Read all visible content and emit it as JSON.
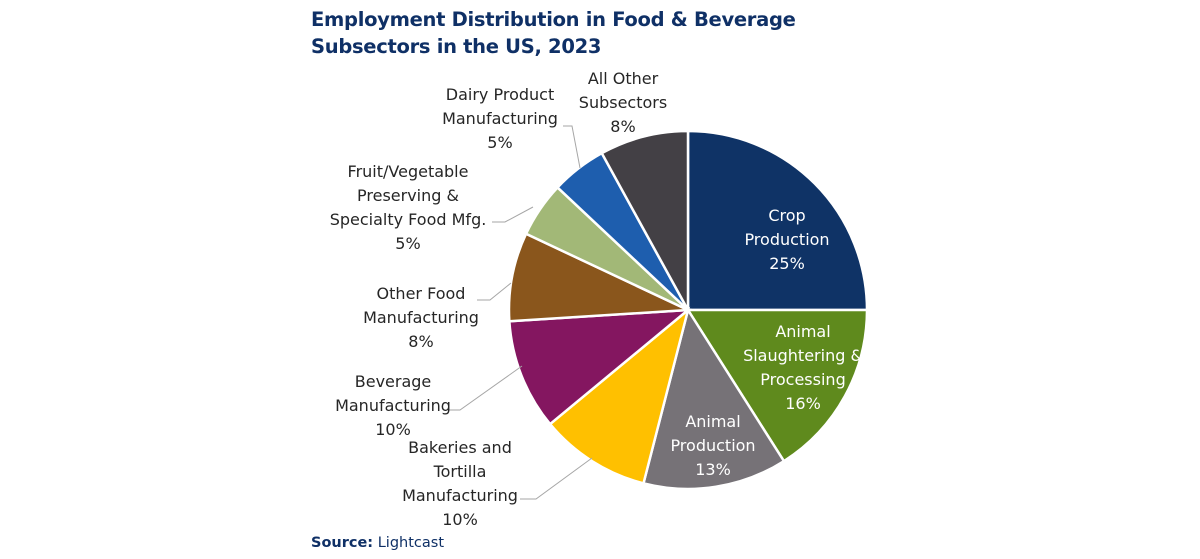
{
  "chart_data": {
    "type": "pie",
    "title": "Employment Distribution in Food & Beverage Subsectors in the US, 2023",
    "title_lines": [
      "Employment Distribution in Food & Beverage",
      "Subsectors in the US, 2023"
    ],
    "start": "top, clockwise",
    "slices": [
      {
        "label": "Crop Production",
        "value": 25,
        "display": "25%",
        "color": "#0f3366"
      },
      {
        "label": "Animal Slaughtering & Processing",
        "value": 16,
        "display": "16%",
        "color": "#5f8a1d"
      },
      {
        "label": "Animal Production",
        "value": 13,
        "display": "13%",
        "color": "#767277"
      },
      {
        "label": "Bakeries and Tortilla Manufacturing",
        "value": 10,
        "display": "10%",
        "color": "#ffc000"
      },
      {
        "label": "Beverage Manufacturing",
        "value": 10,
        "display": "10%",
        "color": "#841660"
      },
      {
        "label": "Other Food Manufacturing",
        "value": 8,
        "display": "8%",
        "color": "#8a561c"
      },
      {
        "label": "Fruit/Vegetable Preserving & Specialty Food Mfg.",
        "value": 5,
        "display": "5%",
        "color": "#a2b877"
      },
      {
        "label": "Dairy Product Manufacturing",
        "value": 5,
        "display": "5%",
        "color": "#1e5eae"
      },
      {
        "label": "All Other Subsectors",
        "value": 8,
        "display": "8%",
        "color": "#434045"
      }
    ]
  },
  "source": {
    "prefix": "Source:",
    "text": "Lightcast"
  }
}
